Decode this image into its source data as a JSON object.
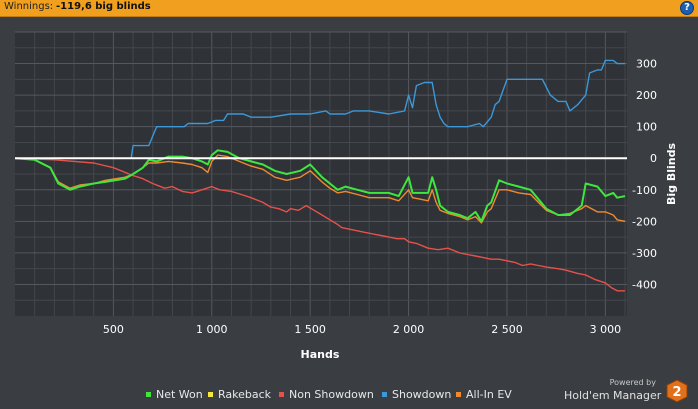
{
  "header": {
    "label": "Winnings:",
    "value": "-119,6 big blinds",
    "help_icon": "question-icon",
    "help_glyph": "?"
  },
  "colors": {
    "header_bg": "#f0a01e",
    "chart_bg": "#2f3237",
    "zero_line": "#ffffff",
    "net_won": "#3ee63e",
    "rakeback": "#f5e83a",
    "non_showdown": "#e5524b",
    "showdown": "#3c98d8",
    "all_in_ev": "#f08a30"
  },
  "chart_data": {
    "type": "line",
    "title": "",
    "xlabel": "Hands",
    "ylabel": "Big Blinds",
    "xlim": [
      0,
      3110
    ],
    "ylim": [
      -500,
      400
    ],
    "x_ticks": [
      500,
      1000,
      1500,
      2000,
      2500,
      3000
    ],
    "x_tick_labels": [
      "500",
      "1 000",
      "1 500",
      "2 000",
      "2 500",
      "3 000"
    ],
    "y_ticks": [
      300,
      200,
      100,
      0,
      -100,
      -200,
      -300,
      -400
    ],
    "y_tick_labels": [
      "300",
      "200",
      "100",
      "0",
      "-100",
      "-200",
      "-300",
      "-400"
    ],
    "grid": true,
    "legend_position": "bottom",
    "series": [
      {
        "name": "Net Won",
        "color": "#3ee63e",
        "points": [
          [
            0,
            0
          ],
          [
            100,
            -5
          ],
          [
            180,
            -30
          ],
          [
            220,
            -80
          ],
          [
            280,
            -100
          ],
          [
            330,
            -90
          ],
          [
            400,
            -80
          ],
          [
            460,
            -75
          ],
          [
            560,
            -65
          ],
          [
            600,
            -50
          ],
          [
            650,
            -30
          ],
          [
            680,
            -5
          ],
          [
            720,
            -10
          ],
          [
            780,
            5
          ],
          [
            850,
            5
          ],
          [
            900,
            0
          ],
          [
            950,
            -10
          ],
          [
            980,
            -20
          ],
          [
            1000,
            10
          ],
          [
            1030,
            25
          ],
          [
            1080,
            20
          ],
          [
            1140,
            0
          ],
          [
            1200,
            -10
          ],
          [
            1260,
            -20
          ],
          [
            1320,
            -40
          ],
          [
            1380,
            -50
          ],
          [
            1450,
            -40
          ],
          [
            1500,
            -20
          ],
          [
            1560,
            -60
          ],
          [
            1600,
            -80
          ],
          [
            1640,
            -100
          ],
          [
            1680,
            -90
          ],
          [
            1740,
            -100
          ],
          [
            1800,
            -110
          ],
          [
            1900,
            -110
          ],
          [
            1950,
            -120
          ],
          [
            2000,
            -60
          ],
          [
            2020,
            -110
          ],
          [
            2060,
            -110
          ],
          [
            2100,
            -110
          ],
          [
            2120,
            -60
          ],
          [
            2140,
            -100
          ],
          [
            2160,
            -150
          ],
          [
            2200,
            -170
          ],
          [
            2260,
            -180
          ],
          [
            2300,
            -190
          ],
          [
            2340,
            -170
          ],
          [
            2370,
            -200
          ],
          [
            2400,
            -150
          ],
          [
            2420,
            -140
          ],
          [
            2460,
            -70
          ],
          [
            2500,
            -80
          ],
          [
            2560,
            -90
          ],
          [
            2620,
            -100
          ],
          [
            2700,
            -160
          ],
          [
            2760,
            -180
          ],
          [
            2820,
            -180
          ],
          [
            2880,
            -150
          ],
          [
            2900,
            -80
          ],
          [
            2960,
            -90
          ],
          [
            3000,
            -120
          ],
          [
            3040,
            -110
          ],
          [
            3060,
            -125
          ],
          [
            3100,
            -120
          ]
        ]
      },
      {
        "name": "Rakeback",
        "color": "#f5e83a",
        "points": [
          [
            0,
            0
          ],
          [
            3110,
            0
          ]
        ]
      },
      {
        "name": "Non Showdown",
        "color": "#e5524b",
        "points": [
          [
            0,
            0
          ],
          [
            200,
            -5
          ],
          [
            400,
            -15
          ],
          [
            500,
            -30
          ],
          [
            600,
            -55
          ],
          [
            650,
            -65
          ],
          [
            700,
            -80
          ],
          [
            760,
            -95
          ],
          [
            800,
            -90
          ],
          [
            850,
            -105
          ],
          [
            900,
            -110
          ],
          [
            950,
            -100
          ],
          [
            1000,
            -90
          ],
          [
            1040,
            -100
          ],
          [
            1100,
            -105
          ],
          [
            1150,
            -115
          ],
          [
            1200,
            -125
          ],
          [
            1260,
            -140
          ],
          [
            1300,
            -155
          ],
          [
            1340,
            -160
          ],
          [
            1380,
            -170
          ],
          [
            1400,
            -160
          ],
          [
            1440,
            -165
          ],
          [
            1480,
            -150
          ],
          [
            1520,
            -165
          ],
          [
            1560,
            -180
          ],
          [
            1600,
            -195
          ],
          [
            1640,
            -210
          ],
          [
            1660,
            -220
          ],
          [
            1700,
            -225
          ],
          [
            1740,
            -230
          ],
          [
            1780,
            -235
          ],
          [
            1820,
            -240
          ],
          [
            1860,
            -245
          ],
          [
            1900,
            -250
          ],
          [
            1940,
            -255
          ],
          [
            1980,
            -255
          ],
          [
            2000,
            -265
          ],
          [
            2040,
            -270
          ],
          [
            2100,
            -285
          ],
          [
            2150,
            -290
          ],
          [
            2200,
            -285
          ],
          [
            2260,
            -300
          ],
          [
            2300,
            -305
          ],
          [
            2340,
            -310
          ],
          [
            2380,
            -315
          ],
          [
            2420,
            -320
          ],
          [
            2460,
            -320
          ],
          [
            2500,
            -325
          ],
          [
            2540,
            -330
          ],
          [
            2580,
            -340
          ],
          [
            2620,
            -335
          ],
          [
            2660,
            -340
          ],
          [
            2700,
            -345
          ],
          [
            2760,
            -350
          ],
          [
            2800,
            -355
          ],
          [
            2860,
            -365
          ],
          [
            2900,
            -370
          ],
          [
            2950,
            -385
          ],
          [
            3000,
            -395
          ],
          [
            3030,
            -410
          ],
          [
            3060,
            -420
          ],
          [
            3100,
            -420
          ]
        ]
      },
      {
        "name": "Showdown",
        "color": "#3c98d8",
        "points": [
          [
            0,
            0
          ],
          [
            590,
            0
          ],
          [
            600,
            40
          ],
          [
            680,
            40
          ],
          [
            700,
            70
          ],
          [
            720,
            100
          ],
          [
            760,
            100
          ],
          [
            800,
            100
          ],
          [
            860,
            100
          ],
          [
            880,
            110
          ],
          [
            980,
            110
          ],
          [
            1020,
            120
          ],
          [
            1060,
            120
          ],
          [
            1080,
            140
          ],
          [
            1160,
            140
          ],
          [
            1200,
            130
          ],
          [
            1300,
            130
          ],
          [
            1400,
            140
          ],
          [
            1500,
            140
          ],
          [
            1580,
            150
          ],
          [
            1600,
            140
          ],
          [
            1680,
            140
          ],
          [
            1720,
            150
          ],
          [
            1800,
            150
          ],
          [
            1900,
            140
          ],
          [
            1980,
            150
          ],
          [
            2000,
            200
          ],
          [
            2020,
            160
          ],
          [
            2040,
            230
          ],
          [
            2080,
            240
          ],
          [
            2120,
            240
          ],
          [
            2140,
            170
          ],
          [
            2160,
            130
          ],
          [
            2180,
            110
          ],
          [
            2200,
            100
          ],
          [
            2300,
            100
          ],
          [
            2360,
            110
          ],
          [
            2380,
            100
          ],
          [
            2420,
            130
          ],
          [
            2440,
            170
          ],
          [
            2460,
            180
          ],
          [
            2500,
            250
          ],
          [
            2560,
            250
          ],
          [
            2620,
            250
          ],
          [
            2680,
            250
          ],
          [
            2720,
            200
          ],
          [
            2760,
            180
          ],
          [
            2800,
            180
          ],
          [
            2820,
            150
          ],
          [
            2860,
            170
          ],
          [
            2900,
            200
          ],
          [
            2920,
            270
          ],
          [
            2960,
            280
          ],
          [
            2980,
            280
          ],
          [
            3000,
            310
          ],
          [
            3040,
            310
          ],
          [
            3060,
            300
          ],
          [
            3100,
            300
          ]
        ]
      },
      {
        "name": "All-In EV",
        "color": "#f08a30",
        "points": [
          [
            0,
            0
          ],
          [
            100,
            -5
          ],
          [
            180,
            -30
          ],
          [
            220,
            -75
          ],
          [
            280,
            -95
          ],
          [
            330,
            -85
          ],
          [
            400,
            -80
          ],
          [
            460,
            -70
          ],
          [
            560,
            -60
          ],
          [
            600,
            -50
          ],
          [
            650,
            -30
          ],
          [
            680,
            -15
          ],
          [
            720,
            -15
          ],
          [
            780,
            -10
          ],
          [
            850,
            -15
          ],
          [
            900,
            -20
          ],
          [
            950,
            -30
          ],
          [
            980,
            -45
          ],
          [
            1000,
            -10
          ],
          [
            1030,
            10
          ],
          [
            1080,
            5
          ],
          [
            1140,
            -10
          ],
          [
            1200,
            -25
          ],
          [
            1260,
            -35
          ],
          [
            1320,
            -60
          ],
          [
            1380,
            -70
          ],
          [
            1450,
            -60
          ],
          [
            1500,
            -40
          ],
          [
            1560,
            -75
          ],
          [
            1600,
            -95
          ],
          [
            1640,
            -110
          ],
          [
            1680,
            -105
          ],
          [
            1740,
            -115
          ],
          [
            1800,
            -125
          ],
          [
            1900,
            -125
          ],
          [
            1950,
            -135
          ],
          [
            2000,
            -100
          ],
          [
            2020,
            -125
          ],
          [
            2060,
            -130
          ],
          [
            2100,
            -135
          ],
          [
            2120,
            -100
          ],
          [
            2140,
            -140
          ],
          [
            2160,
            -165
          ],
          [
            2200,
            -175
          ],
          [
            2260,
            -185
          ],
          [
            2300,
            -195
          ],
          [
            2340,
            -185
          ],
          [
            2370,
            -205
          ],
          [
            2400,
            -170
          ],
          [
            2420,
            -160
          ],
          [
            2460,
            -100
          ],
          [
            2500,
            -100
          ],
          [
            2560,
            -110
          ],
          [
            2620,
            -115
          ],
          [
            2700,
            -165
          ],
          [
            2760,
            -180
          ],
          [
            2820,
            -175
          ],
          [
            2880,
            -160
          ],
          [
            2900,
            -150
          ],
          [
            2960,
            -170
          ],
          [
            3000,
            -170
          ],
          [
            3040,
            -180
          ],
          [
            3060,
            -195
          ],
          [
            3100,
            -200
          ]
        ]
      }
    ]
  },
  "legend": [
    {
      "label": "Net Won",
      "color": "#3ee63e"
    },
    {
      "label": "Rakeback",
      "color": "#f5e83a"
    },
    {
      "label": "Non Showdown",
      "color": "#e5524b"
    },
    {
      "label": "Showdown",
      "color": "#3c98d8"
    },
    {
      "label": "All-In EV",
      "color": "#f08a30"
    }
  ],
  "branding": {
    "powered_by": "Powered by",
    "name": "Hold'em Manager",
    "badge": "2",
    "logo_icon": "holdem-manager-logo-icon"
  }
}
